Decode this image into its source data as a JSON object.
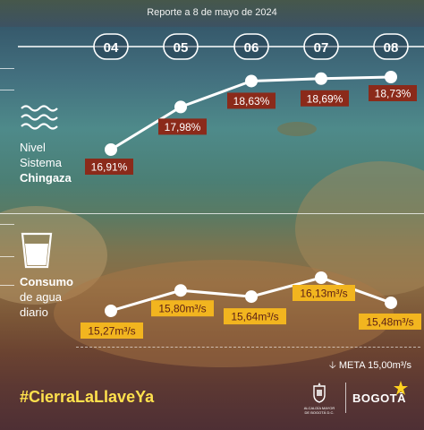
{
  "report_date": "Reporte a 8 de mayo de 2024",
  "colors": {
    "level_label_bg": "#8b2a1a",
    "consumption_label_bg": "#f2b51f",
    "consumption_label_text": "#5a1e16",
    "hashtag": "#ffe14d",
    "line": "#ffffff"
  },
  "icons": {
    "level": "water-waves-icon",
    "consumption": "water-glass-icon",
    "meta": "arrow-down-icon",
    "logo1": "coat-of-arms-icon",
    "logo2": "bogota-star-icon"
  },
  "labels": {
    "level_line1": "Nivel",
    "level_line2": "Sistema",
    "level_line3": "Chingaza",
    "consumption_line1": "Consumo",
    "consumption_line2": "de agua",
    "consumption_line3": "diario",
    "meta": "META 15,00m³/s",
    "hashtag": "#CierraLaLlaveYa",
    "alcaldia_line1": "ALCALDÍA MAYOR",
    "alcaldia_line2": "DE BOGOTÁ D.C.",
    "bogota": "BOGOTĀ"
  },
  "chart_data": [
    {
      "type": "line",
      "categories": [
        "04",
        "05",
        "06",
        "07",
        "08"
      ],
      "series": [
        {
          "name": "Nivel Sistema Chingaza",
          "values": [
            16.91,
            17.98,
            18.63,
            18.69,
            18.73
          ],
          "value_labels": [
            "16,91%",
            "17,98%",
            "18,63%",
            "18,69%",
            "18,73%"
          ]
        }
      ]
    },
    {
      "type": "line",
      "categories": [
        "04",
        "05",
        "06",
        "07",
        "08"
      ],
      "series": [
        {
          "name": "Consumo de agua diario",
          "values": [
            15.27,
            15.8,
            15.64,
            16.13,
            15.48
          ],
          "value_labels": [
            "15,27m³/s",
            "15,80m³/s",
            "15,64m³/s",
            "16,13m³/s",
            "15,48m³/s"
          ]
        }
      ],
      "reference_line": {
        "value": 15.0,
        "label": "META 15,00m³/s"
      }
    }
  ]
}
